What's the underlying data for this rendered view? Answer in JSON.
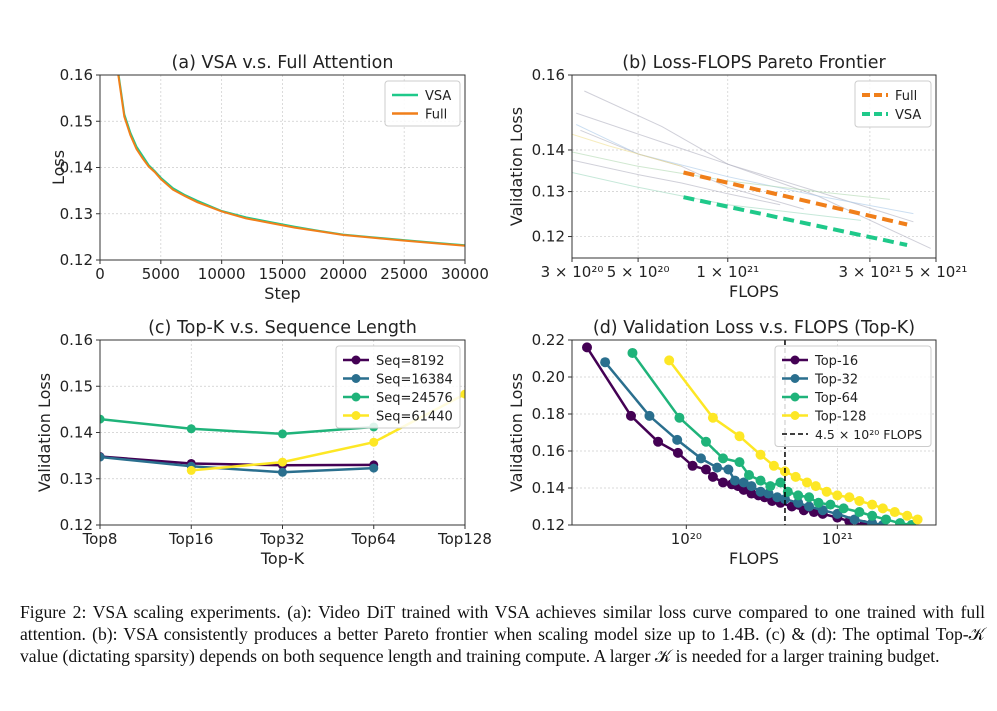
{
  "caption": "Figure 2: VSA scaling experiments. (a): Video DiT trained with VSA achieves similar loss curve compared to one trained with full attention. (b): VSA consistently produces a better Pareto frontier when scaling model size up to 1.4B. (c) & (d): The optimal Top-𝒦 value (dictating sparsity) depends on both sequence length and training compute. A larger 𝒦 is needed for a larger training budget.",
  "chart_data": [
    {
      "id": "a",
      "type": "line",
      "title": "(a) VSA v.s. Full Attention",
      "xlabel": "Step",
      "ylabel": "Loss",
      "xlim": [
        0,
        30000
      ],
      "ylim": [
        0.12,
        0.16
      ],
      "xscale": "linear",
      "yscale": "linear",
      "grid": true,
      "legend": "top-right",
      "xticks": [
        0,
        5000,
        10000,
        15000,
        20000,
        25000,
        30000
      ],
      "xticklabels": [
        "0",
        "5000",
        "10000",
        "15000",
        "20000",
        "25000",
        "30000"
      ],
      "yticks": [
        0.12,
        0.13,
        0.14,
        0.15,
        0.16
      ],
      "yticklabels": [
        "0.12",
        "0.13",
        "0.14",
        "0.15",
        "0.16"
      ],
      "series": [
        {
          "name": "VSA",
          "color": "#1fc98a",
          "x": [
            1500,
            2000,
            2500,
            3000,
            3500,
            4000,
            4500,
            5000,
            6000,
            7000,
            8000,
            9000,
            10000,
            12000,
            14000,
            16000,
            18000,
            20000,
            22000,
            25000,
            28000,
            30000
          ],
          "y": [
            0.1605,
            0.1515,
            0.1475,
            0.1445,
            0.1425,
            0.1405,
            0.1392,
            0.1378,
            0.1355,
            0.134,
            0.1328,
            0.1317,
            0.1306,
            0.1292,
            0.1282,
            0.1272,
            0.1263,
            0.1255,
            0.125,
            0.1243,
            0.1236,
            0.1232
          ]
        },
        {
          "name": "Full",
          "color": "#f07f1a",
          "x": [
            1500,
            2000,
            2500,
            3000,
            3500,
            4000,
            4500,
            5000,
            6000,
            7000,
            8000,
            9000,
            10000,
            12000,
            14000,
            16000,
            18000,
            20000,
            22000,
            25000,
            28000,
            30000
          ],
          "y": [
            0.16,
            0.151,
            0.147,
            0.144,
            0.142,
            0.1402,
            0.139,
            0.1375,
            0.1352,
            0.1338,
            0.1325,
            0.1315,
            0.1305,
            0.129,
            0.128,
            0.127,
            0.1262,
            0.1254,
            0.1249,
            0.1242,
            0.1235,
            0.1231
          ]
        }
      ]
    },
    {
      "id": "b",
      "type": "line",
      "title": "(b) Loss-FLOPS Pareto Frontier",
      "xlabel": "FLOPS",
      "ylabel": "Validation Loss",
      "xlim": [
        3e+20,
        5e+21
      ],
      "ylim": [
        0.1155,
        0.16
      ],
      "xscale": "log",
      "yscale": "log",
      "grid": true,
      "legend": "top-right",
      "xticks": [
        3e+20,
        5e+20,
        1e+21,
        3e+21,
        5e+21
      ],
      "xticklabels": [
        "3 × 10²⁰",
        "5 × 10²⁰",
        "1 × 10²¹",
        "3 × 10²¹",
        "5 × 10²¹"
      ],
      "yticks": [
        0.12,
        0.13,
        0.14,
        0.16
      ],
      "yticklabels": [
        "0.12",
        "0.13",
        "0.14",
        "0.16"
      ],
      "series": [
        {
          "name": "Full",
          "color": "#f07f1a",
          "dashed": true,
          "x": [
            7.1e+20,
            4e+21
          ],
          "y": [
            0.1345,
            0.1226
          ]
        },
        {
          "name": "VSA",
          "color": "#1fc98a",
          "dashed": true,
          "x": [
            7.1e+20,
            4e+21
          ],
          "y": [
            0.1287,
            0.1182
          ]
        },
        {
          "color": "#b0b0c0",
          "faint": true,
          "x": [
            3.3e+20,
            6e+20,
            1e+21,
            2e+21,
            4.8e+21
          ],
          "y": [
            0.1555,
            0.146,
            0.1365,
            0.129,
            0.1175
          ]
        },
        {
          "color": "#b0b0c0",
          "faint": true,
          "x": [
            3.1e+20,
            6e+20,
            1e+21,
            2e+21,
            4.2e+21
          ],
          "y": [
            0.1495,
            0.142,
            0.1365,
            0.13,
            0.1232
          ]
        },
        {
          "color": "#a8c8e8",
          "faint": true,
          "x": [
            3.1e+20,
            5e+20,
            1e+21,
            2e+21,
            4.2e+21
          ],
          "y": [
            0.1465,
            0.139,
            0.1335,
            0.129,
            0.125
          ]
        },
        {
          "color": "#b0b0c0",
          "faint": true,
          "x": [
            3.2e+20,
            5e+20,
            7e+20,
            1e+21,
            1.8e+21
          ],
          "y": [
            0.145,
            0.139,
            0.136,
            0.131,
            0.126
          ]
        },
        {
          "color": "#f0e090",
          "faint": true,
          "x": [
            3e+20,
            4e+20,
            5e+20,
            7e+20
          ],
          "y": [
            0.144,
            0.141,
            0.139,
            0.136
          ]
        },
        {
          "color": "#b0d8b0",
          "faint": true,
          "x": [
            3e+20,
            5e+20,
            1e+21,
            2e+21,
            3.5e+21
          ],
          "y": [
            0.1395,
            0.136,
            0.1325,
            0.13,
            0.1282
          ]
        },
        {
          "color": "#b0b0c0",
          "faint": true,
          "x": [
            3e+20,
            5e+20,
            7e+20,
            1e+21,
            1.5e+21
          ],
          "y": [
            0.1375,
            0.134,
            0.132,
            0.1295,
            0.127
          ]
        },
        {
          "color": "#a0d8c0",
          "faint": true,
          "x": [
            3e+20,
            5e+20,
            7e+20,
            1e+21,
            2.8e+21
          ],
          "y": [
            0.1345,
            0.131,
            0.129,
            0.127,
            0.1235
          ]
        }
      ]
    },
    {
      "id": "c",
      "type": "line",
      "title": "(c) Top-K v.s. Sequence Length",
      "xlabel": "Top-K",
      "ylabel": "Validation Loss",
      "categories": [
        "Top8",
        "Top16",
        "Top32",
        "Top64",
        "Top128"
      ],
      "ylim": [
        0.12,
        0.16
      ],
      "grid": true,
      "legend": "top-right",
      "yticks": [
        0.12,
        0.13,
        0.14,
        0.15,
        0.16
      ],
      "yticklabels": [
        "0.12",
        "0.13",
        "0.14",
        "0.15",
        "0.16"
      ],
      "series": [
        {
          "name": "Seq=8192",
          "color": "#440154",
          "values": [
            0.1348,
            0.1333,
            0.1329,
            0.133,
            null
          ]
        },
        {
          "name": "Seq=16384",
          "color": "#2a6f8e",
          "values": [
            0.1347,
            0.1327,
            0.1314,
            0.1323,
            null
          ]
        },
        {
          "name": "Seq=24576",
          "color": "#1fb37a",
          "values": [
            0.1429,
            0.1408,
            0.1397,
            0.1412,
            null
          ]
        },
        {
          "name": "Seq=61440",
          "color": "#fde725",
          "values": [
            null,
            0.1318,
            0.1336,
            0.1379,
            0.1483
          ]
        }
      ]
    },
    {
      "id": "d",
      "type": "line",
      "title": "(d) Validation Loss v.s. FLOPS (Top-K)",
      "xlabel": "FLOPS",
      "ylabel": "Validation Loss",
      "xlim": [
        1.75e+19,
        4.5e+21
      ],
      "ylim": [
        0.12,
        0.22
      ],
      "xscale": "log",
      "yscale": "linear",
      "grid": true,
      "legend": "top-right",
      "xticks": [
        1e+20,
        1e+21
      ],
      "xticklabels": [
        "10²⁰",
        "10²¹"
      ],
      "yticks": [
        0.12,
        0.14,
        0.16,
        0.18,
        0.2,
        0.22
      ],
      "yticklabels": [
        "0.12",
        "0.14",
        "0.16",
        "0.18",
        "0.20",
        "0.22"
      ],
      "vline": {
        "x": 4.5e+20,
        "label": "4.5 × 10²⁰ FLOPS"
      },
      "series": [
        {
          "name": "Top-16",
          "color": "#440154",
          "x": [
            2.2e+19,
            4.3e+19,
            6.5e+19,
            8.8e+19,
            1.1e+20,
            1.35e+20,
            1.5e+20,
            1.75e+20,
            2e+20,
            2.2e+20,
            2.4e+20,
            2.7e+20,
            3e+20,
            3.3e+20,
            3.7e+20,
            4.2e+20,
            5e+20,
            6e+20,
            7e+20,
            8e+20,
            1e+21,
            1.2e+21,
            1.5e+21
          ],
          "y": [
            0.216,
            0.179,
            0.165,
            0.159,
            0.152,
            0.15,
            0.146,
            0.143,
            0.142,
            0.141,
            0.139,
            0.137,
            0.136,
            0.135,
            0.133,
            0.132,
            0.13,
            0.128,
            0.127,
            0.126,
            0.124,
            0.122,
            0.12
          ]
        },
        {
          "name": "Top-32",
          "color": "#2a6f8e",
          "x": [
            2.9e+19,
            5.7e+19,
            8.7e+19,
            1.25e+20,
            1.6e+20,
            1.9e+20,
            2.1e+20,
            2.4e+20,
            2.7e+20,
            3.1e+20,
            3.5e+20,
            4e+20,
            4.5e+20,
            5.5e+20,
            6.5e+20,
            8e+20,
            1e+21,
            1.3e+21,
            1.7e+21,
            2e+21
          ],
          "y": [
            0.208,
            0.179,
            0.166,
            0.156,
            0.151,
            0.15,
            0.144,
            0.143,
            0.141,
            0.138,
            0.137,
            0.135,
            0.134,
            0.132,
            0.13,
            0.128,
            0.126,
            0.123,
            0.121,
            0.12
          ]
        },
        {
          "name": "Top-64",
          "color": "#1fb37a",
          "x": [
            4.4e+19,
            9e+19,
            1.35e+20,
            1.75e+20,
            2.25e+20,
            2.6e+20,
            3.1e+20,
            3.6e+20,
            4.2e+20,
            4.7e+20,
            5.5e+20,
            6.5e+20,
            7.5e+20,
            9e+20,
            1.1e+21,
            1.4e+21,
            1.7e+21,
            2.1e+21,
            2.6e+21,
            3.1e+21
          ],
          "y": [
            0.213,
            0.178,
            0.165,
            0.156,
            0.154,
            0.147,
            0.144,
            0.141,
            0.143,
            0.138,
            0.136,
            0.135,
            0.132,
            0.131,
            0.129,
            0.127,
            0.125,
            0.123,
            0.121,
            0.12
          ]
        },
        {
          "name": "Top-128",
          "color": "#fde725",
          "x": [
            7.7e+19,
            1.5e+20,
            2.25e+20,
            3.1e+20,
            3.8e+20,
            4.5e+20,
            5.3e+20,
            6.3e+20,
            7.2e+20,
            8.5e+20,
            1e+21,
            1.2e+21,
            1.4e+21,
            1.7e+21,
            2e+21,
            2.4e+21,
            2.9e+21,
            3.4e+21
          ],
          "y": [
            0.209,
            0.178,
            0.168,
            0.158,
            0.152,
            0.149,
            0.146,
            0.143,
            0.141,
            0.138,
            0.136,
            0.135,
            0.133,
            0.131,
            0.129,
            0.127,
            0.125,
            0.123
          ]
        }
      ]
    }
  ]
}
